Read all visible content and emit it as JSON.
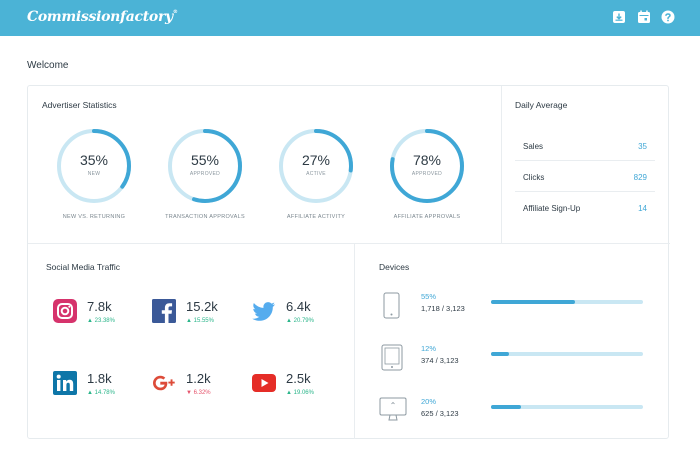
{
  "app": {
    "logo_text": "Commissionfactory",
    "logo_mark": "®"
  },
  "header_icons": [
    "download-icon",
    "calendar-icon",
    "help-icon"
  ],
  "welcome": "Welcome",
  "advertiser_statistics": {
    "title": "Advertiser Statistics",
    "gauges": [
      {
        "value": "35%",
        "fraction": 0.35,
        "sub": "NEW",
        "caption": "NEW VS. RETURNING"
      },
      {
        "value": "55%",
        "fraction": 0.55,
        "sub": "APPROVED",
        "caption": "TRANSACTION APPROVALS"
      },
      {
        "value": "27%",
        "fraction": 0.27,
        "sub": "ACTIVE",
        "caption": "AFFILIATE ACTIVITY"
      },
      {
        "value": "78%",
        "fraction": 0.78,
        "sub": "APPROVED",
        "caption": "AFFILIATE APPROVALS"
      }
    ]
  },
  "daily_average": {
    "title": "Daily Average",
    "rows": [
      {
        "label": "Sales",
        "value": "35"
      },
      {
        "label": "Clicks",
        "value": "829"
      },
      {
        "label": "Affiliate Sign-Up",
        "value": "14"
      }
    ]
  },
  "social_media": {
    "title": "Social Media Traffic",
    "items": [
      {
        "network": "instagram",
        "value": "7.8k",
        "change": "▲ 23.38%",
        "trend": "up"
      },
      {
        "network": "facebook",
        "value": "15.2k",
        "change": "▲ 15.55%",
        "trend": "up"
      },
      {
        "network": "twitter",
        "value": "6.4k",
        "change": "▲ 20.79%",
        "trend": "up"
      },
      {
        "network": "linkedin",
        "value": "1.8k",
        "change": "▲ 14.78%",
        "trend": "up"
      },
      {
        "network": "google-plus",
        "value": "1.2k",
        "change": "▼ 6.32%",
        "trend": "down"
      },
      {
        "network": "youtube",
        "value": "2.5k",
        "change": "▲ 19.06%",
        "trend": "up"
      }
    ]
  },
  "devices": {
    "title": "Devices",
    "items": [
      {
        "device": "mobile",
        "percent": "55%",
        "fraction": 0.55,
        "count": "1,718 /  3,123"
      },
      {
        "device": "tablet",
        "percent": "12%",
        "fraction": 0.12,
        "count": "374 / 3,123"
      },
      {
        "device": "desktop",
        "percent": "20%",
        "fraction": 0.2,
        "count": "625 / 3,123"
      }
    ]
  },
  "colors": {
    "header": "#4bb3d6",
    "accent": "#3fa7d6",
    "track": "#c9e7f3",
    "up": "#2ab58a",
    "down": "#e5536b"
  }
}
